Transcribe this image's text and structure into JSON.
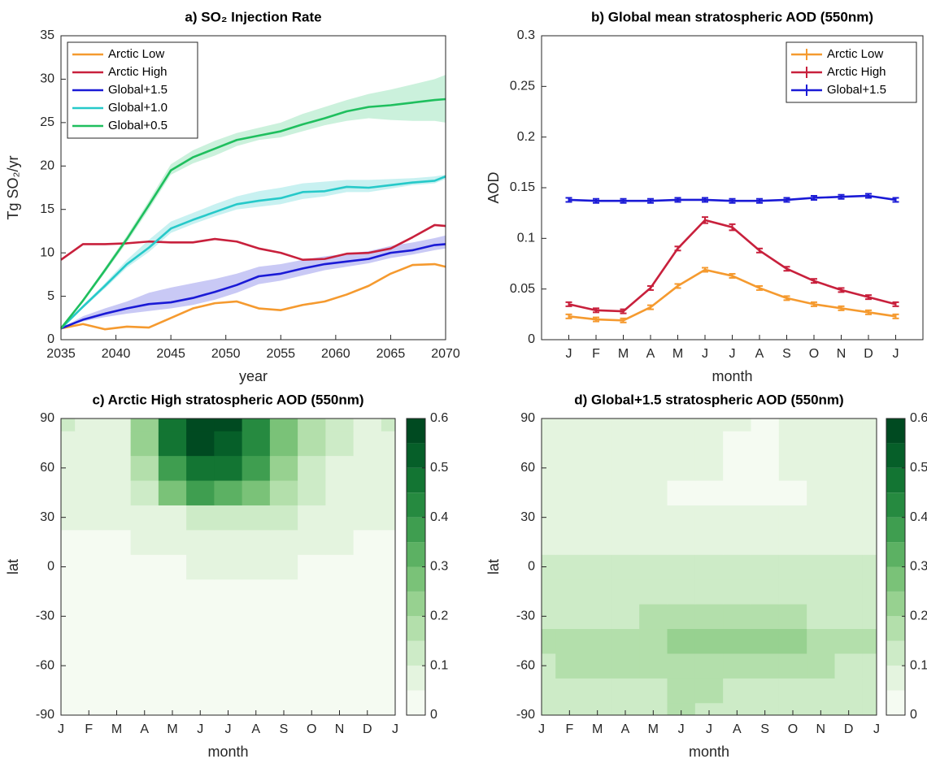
{
  "chart_data": [
    {
      "type": "line",
      "title": "a) SO₂ Injection Rate",
      "xlabel": "year",
      "ylabel": "Tg SO₂/yr",
      "x": [
        2035,
        2037,
        2039,
        2041,
        2043,
        2045,
        2047,
        2049,
        2051,
        2053,
        2055,
        2057,
        2059,
        2061,
        2063,
        2065,
        2067,
        2069,
        2070
      ],
      "xlim": [
        2035,
        2070
      ],
      "xticks": [
        2035,
        2040,
        2045,
        2050,
        2055,
        2060,
        2065,
        2070
      ],
      "ylim": [
        0,
        35
      ],
      "yticks": [
        0,
        5,
        10,
        15,
        20,
        25,
        30,
        35
      ],
      "grid": false,
      "legend": "upper left",
      "series": [
        {
          "name": "Arctic Low",
          "color": "#f59a2f",
          "values": [
            1.3,
            1.8,
            1.2,
            1.5,
            1.4,
            2.5,
            3.6,
            4.2,
            4.4,
            3.6,
            3.4,
            4.0,
            4.4,
            5.2,
            6.2,
            7.6,
            8.6,
            8.7,
            8.4
          ]
        },
        {
          "name": "Arctic High",
          "color": "#c8203c",
          "values": [
            9.2,
            11.0,
            11.0,
            11.1,
            11.3,
            11.2,
            11.2,
            11.6,
            11.3,
            10.5,
            10.0,
            9.2,
            9.3,
            9.9,
            10.0,
            10.5,
            11.8,
            13.2,
            13.1
          ]
        },
        {
          "name": "Global+1.5",
          "color": "#1a1ad6",
          "values": [
            1.3,
            2.3,
            3.0,
            3.6,
            4.1,
            4.3,
            4.8,
            5.5,
            6.3,
            7.3,
            7.6,
            8.2,
            8.7,
            9.0,
            9.3,
            10.0,
            10.3,
            10.9,
            11.0
          ],
          "lower": [
            1.3,
            2.1,
            2.6,
            3.0,
            3.3,
            3.6,
            4.0,
            4.6,
            5.4,
            6.4,
            6.8,
            7.4,
            8.0,
            8.4,
            8.8,
            9.4,
            9.8,
            10.3,
            10.5
          ],
          "upper": [
            1.3,
            2.7,
            3.6,
            4.4,
            5.4,
            6.0,
            6.5,
            7.0,
            7.6,
            8.4,
            8.7,
            9.2,
            9.6,
            9.9,
            10.2,
            10.8,
            11.2,
            11.7,
            12.0
          ],
          "band_color": "#b7b7f2"
        },
        {
          "name": "Global+1.0",
          "color": "#26c9c9",
          "values": [
            1.3,
            3.8,
            6.2,
            8.7,
            10.6,
            12.8,
            13.8,
            14.7,
            15.6,
            16.0,
            16.3,
            17.0,
            17.1,
            17.6,
            17.5,
            17.8,
            18.1,
            18.3,
            18.8
          ],
          "lower": [
            1.3,
            3.6,
            5.9,
            8.3,
            10.1,
            12.3,
            13.3,
            14.2,
            15.0,
            15.3,
            15.6,
            16.2,
            16.5,
            17.0,
            17.0,
            17.4,
            17.8,
            18.0,
            18.5
          ],
          "upper": [
            1.3,
            4.0,
            6.5,
            9.2,
            11.5,
            13.6,
            14.6,
            15.6,
            16.5,
            17.1,
            17.5,
            18.0,
            18.2,
            18.4,
            18.4,
            18.5,
            18.6,
            18.8,
            19.0
          ],
          "band_color": "#b5ecec"
        },
        {
          "name": "Global+0.5",
          "color": "#1fbf5e",
          "values": [
            1.3,
            4.5,
            8.0,
            11.6,
            15.5,
            19.5,
            21.0,
            22.0,
            23.0,
            23.5,
            24.0,
            24.8,
            25.5,
            26.3,
            26.8,
            27.0,
            27.3,
            27.6,
            27.7
          ],
          "lower": [
            1.3,
            4.3,
            7.7,
            11.2,
            15.0,
            19.0,
            20.3,
            21.2,
            22.3,
            23.0,
            23.3,
            24.0,
            24.7,
            25.2,
            25.5,
            25.3,
            25.2,
            25.2,
            25.0
          ],
          "upper": [
            1.3,
            4.7,
            8.3,
            12.0,
            16.0,
            20.2,
            21.8,
            22.9,
            23.8,
            24.4,
            25.0,
            26.0,
            26.8,
            27.6,
            28.3,
            28.8,
            29.4,
            30.0,
            30.5
          ],
          "band_color": "#b9ecd0"
        }
      ]
    },
    {
      "type": "line",
      "title": "b) Global mean stratospheric AOD (550nm)",
      "xlabel": "month",
      "ylabel": "AOD",
      "categories": [
        "J",
        "F",
        "M",
        "A",
        "M",
        "J",
        "J",
        "A",
        "S",
        "O",
        "N",
        "D",
        "J"
      ],
      "ylim": [
        0,
        0.3
      ],
      "yticks": [
        0,
        0.05,
        0.1,
        0.15,
        0.2,
        0.25,
        0.3
      ],
      "grid": false,
      "legend": "upper right",
      "series": [
        {
          "name": "Arctic Low",
          "color": "#f59a2f",
          "values": [
            0.023,
            0.02,
            0.019,
            0.032,
            0.053,
            0.069,
            0.063,
            0.051,
            0.041,
            0.035,
            0.031,
            0.027,
            0.023
          ],
          "errors": [
            0.002,
            0.002,
            0.002,
            0.002,
            0.002,
            0.002,
            0.002,
            0.002,
            0.002,
            0.002,
            0.002,
            0.002,
            0.002
          ]
        },
        {
          "name": "Arctic High",
          "color": "#c8203c",
          "values": [
            0.035,
            0.029,
            0.028,
            0.051,
            0.09,
            0.118,
            0.111,
            0.088,
            0.07,
            0.058,
            0.049,
            0.042,
            0.035
          ],
          "errors": [
            0.002,
            0.002,
            0.002,
            0.002,
            0.002,
            0.003,
            0.003,
            0.002,
            0.002,
            0.002,
            0.002,
            0.002,
            0.002
          ]
        },
        {
          "name": "Global+1.5",
          "color": "#1a1ad6",
          "values": [
            0.138,
            0.137,
            0.137,
            0.137,
            0.138,
            0.138,
            0.137,
            0.137,
            0.138,
            0.14,
            0.141,
            0.142,
            0.138
          ],
          "errors": [
            0.002,
            0.002,
            0.002,
            0.002,
            0.002,
            0.002,
            0.002,
            0.002,
            0.002,
            0.002,
            0.002,
            0.002,
            0.002
          ]
        }
      ]
    },
    {
      "type": "contour",
      "title": "c) Arctic High stratospheric AOD (550nm)",
      "xlabel": "month",
      "ylabel": "lat",
      "categories": [
        "J",
        "F",
        "M",
        "A",
        "M",
        "J",
        "J",
        "A",
        "S",
        "O",
        "N",
        "D",
        "J"
      ],
      "y": [
        -90,
        -75,
        -60,
        -45,
        -30,
        -15,
        0,
        15,
        30,
        45,
        60,
        75,
        90
      ],
      "ylim": [
        -90,
        90
      ],
      "yticks": [
        -90,
        -60,
        -30,
        0,
        30,
        60,
        90
      ],
      "levels": [
        0,
        0.05,
        0.1,
        0.15,
        0.2,
        0.25,
        0.3,
        0.35,
        0.4,
        0.45,
        0.5,
        0.55,
        0.6
      ],
      "colors": [
        "#f5fbf2",
        "#e4f4df",
        "#cdebc7",
        "#b3dfab",
        "#97d190",
        "#7ac278",
        "#5cb163",
        "#3f9e50",
        "#268a40",
        "#137533",
        "#065f29",
        "#004a21"
      ],
      "cticks": [
        0,
        0.1,
        0.2,
        0.3,
        0.4,
        0.5,
        0.6
      ],
      "z": [
        [
          0.02,
          0.02,
          0.02,
          0.02,
          0.02,
          0.02,
          0.02,
          0.02,
          0.02,
          0.02,
          0.02,
          0.02,
          0.02
        ],
        [
          0.02,
          0.02,
          0.02,
          0.02,
          0.02,
          0.02,
          0.02,
          0.02,
          0.02,
          0.02,
          0.02,
          0.02,
          0.02
        ],
        [
          0.02,
          0.02,
          0.02,
          0.02,
          0.02,
          0.02,
          0.02,
          0.02,
          0.02,
          0.02,
          0.02,
          0.02,
          0.02
        ],
        [
          0.02,
          0.02,
          0.02,
          0.02,
          0.02,
          0.02,
          0.02,
          0.02,
          0.02,
          0.02,
          0.02,
          0.02,
          0.02
        ],
        [
          0.03,
          0.03,
          0.03,
          0.03,
          0.03,
          0.03,
          0.03,
          0.03,
          0.03,
          0.03,
          0.03,
          0.03,
          0.03
        ],
        [
          0.03,
          0.03,
          0.03,
          0.03,
          0.03,
          0.03,
          0.03,
          0.03,
          0.03,
          0.03,
          0.03,
          0.03,
          0.03
        ],
        [
          0.03,
          0.03,
          0.03,
          0.03,
          0.04,
          0.05,
          0.06,
          0.06,
          0.05,
          0.04,
          0.03,
          0.03,
          0.03
        ],
        [
          0.04,
          0.04,
          0.04,
          0.05,
          0.06,
          0.08,
          0.09,
          0.09,
          0.07,
          0.06,
          0.05,
          0.04,
          0.04
        ],
        [
          0.05,
          0.05,
          0.05,
          0.06,
          0.09,
          0.12,
          0.13,
          0.12,
          0.1,
          0.08,
          0.06,
          0.05,
          0.05
        ],
        [
          0.07,
          0.07,
          0.07,
          0.12,
          0.25,
          0.35,
          0.33,
          0.25,
          0.16,
          0.1,
          0.08,
          0.07,
          0.07
        ],
        [
          0.07,
          0.07,
          0.07,
          0.18,
          0.38,
          0.48,
          0.45,
          0.35,
          0.22,
          0.13,
          0.09,
          0.07,
          0.07
        ],
        [
          0.07,
          0.07,
          0.07,
          0.2,
          0.45,
          0.56,
          0.52,
          0.4,
          0.25,
          0.15,
          0.1,
          0.08,
          0.07
        ],
        [
          0.1,
          0.07,
          0.07,
          0.2,
          0.48,
          0.6,
          0.55,
          0.42,
          0.27,
          0.16,
          0.1,
          0.08,
          0.1
        ]
      ]
    },
    {
      "type": "contour",
      "title": "d) Global+1.5 stratospheric AOD (550nm)",
      "xlabel": "month",
      "ylabel": "lat",
      "categories": [
        "J",
        "F",
        "M",
        "A",
        "M",
        "J",
        "J",
        "A",
        "S",
        "O",
        "N",
        "D",
        "J"
      ],
      "y": [
        -90,
        -75,
        -60,
        -45,
        -30,
        -15,
        0,
        15,
        30,
        45,
        60,
        75,
        90
      ],
      "ylim": [
        -90,
        90
      ],
      "yticks": [
        -90,
        -60,
        -30,
        0,
        30,
        60,
        90
      ],
      "levels": [
        0,
        0.05,
        0.1,
        0.15,
        0.2,
        0.25,
        0.3,
        0.35,
        0.4,
        0.45,
        0.5,
        0.55,
        0.6
      ],
      "colors": [
        "#f5fbf2",
        "#e4f4df",
        "#cdebc7",
        "#b3dfab",
        "#97d190",
        "#7ac278",
        "#5cb163",
        "#3f9e50",
        "#268a40",
        "#137533",
        "#065f29",
        "#004a21"
      ],
      "cticks": [
        0,
        0.1,
        0.2,
        0.3,
        0.4,
        0.5,
        0.6
      ],
      "z": [
        [
          0.12,
          0.12,
          0.12,
          0.12,
          0.13,
          0.16,
          0.14,
          0.13,
          0.12,
          0.12,
          0.12,
          0.12,
          0.12
        ],
        [
          0.13,
          0.13,
          0.13,
          0.13,
          0.14,
          0.15,
          0.15,
          0.14,
          0.13,
          0.13,
          0.13,
          0.13,
          0.13
        ],
        [
          0.14,
          0.15,
          0.15,
          0.15,
          0.16,
          0.17,
          0.18,
          0.18,
          0.17,
          0.16,
          0.15,
          0.14,
          0.14
        ],
        [
          0.16,
          0.16,
          0.16,
          0.16,
          0.18,
          0.2,
          0.24,
          0.24,
          0.23,
          0.2,
          0.18,
          0.17,
          0.16
        ],
        [
          0.12,
          0.13,
          0.14,
          0.14,
          0.15,
          0.16,
          0.17,
          0.17,
          0.16,
          0.15,
          0.14,
          0.13,
          0.12
        ],
        [
          0.12,
          0.12,
          0.12,
          0.12,
          0.12,
          0.13,
          0.14,
          0.14,
          0.13,
          0.12,
          0.12,
          0.12,
          0.12
        ],
        [
          0.1,
          0.1,
          0.1,
          0.1,
          0.1,
          0.1,
          0.1,
          0.1,
          0.1,
          0.1,
          0.1,
          0.1,
          0.1
        ],
        [
          0.07,
          0.07,
          0.07,
          0.07,
          0.06,
          0.06,
          0.06,
          0.06,
          0.06,
          0.07,
          0.07,
          0.07,
          0.07
        ],
        [
          0.05,
          0.05,
          0.05,
          0.05,
          0.05,
          0.05,
          0.05,
          0.05,
          0.05,
          0.05,
          0.05,
          0.05,
          0.05
        ],
        [
          0.06,
          0.06,
          0.06,
          0.05,
          0.05,
          0.04,
          0.04,
          0.04,
          0.04,
          0.04,
          0.05,
          0.06,
          0.06
        ],
        [
          0.08,
          0.08,
          0.07,
          0.07,
          0.06,
          0.05,
          0.05,
          0.04,
          0.04,
          0.05,
          0.07,
          0.08,
          0.08
        ],
        [
          0.08,
          0.08,
          0.08,
          0.08,
          0.07,
          0.06,
          0.05,
          0.04,
          0.04,
          0.05,
          0.08,
          0.09,
          0.08
        ],
        [
          0.08,
          0.08,
          0.08,
          0.08,
          0.08,
          0.07,
          0.06,
          0.05,
          0.04,
          0.06,
          0.09,
          0.09,
          0.08
        ]
      ]
    }
  ]
}
